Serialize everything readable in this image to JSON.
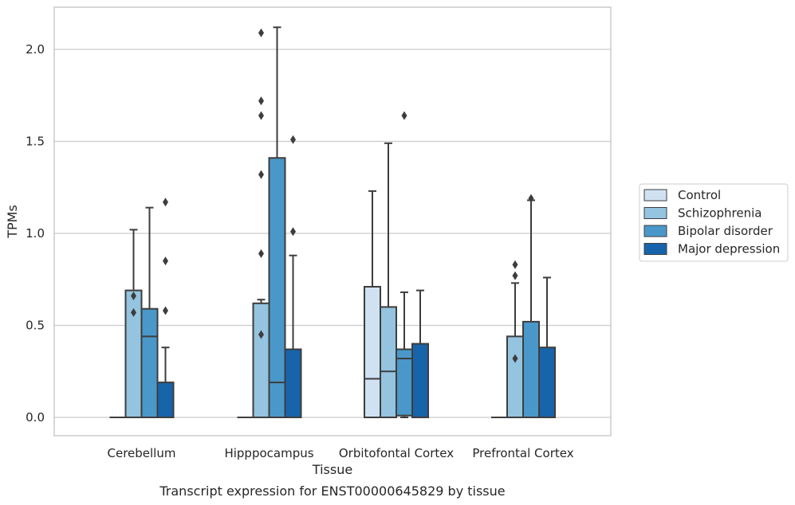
{
  "chart_data": {
    "type": "box",
    "title": "",
    "caption": "Transcript expression for ENST00000645829 by tissue",
    "xlabel": "Tissue",
    "ylabel": "TPMs",
    "categories": [
      "Cerebellum",
      "Hipppocampus",
      "Orbitofontal Cortex",
      "Prefrontal Cortex"
    ],
    "ylim": [
      -0.1,
      2.23
    ],
    "yticks": [
      0.0,
      0.5,
      1.0,
      1.5,
      2.0
    ],
    "ytick_labels": [
      "0.0",
      "0.5",
      "1.0",
      "1.5",
      "2.0"
    ],
    "grid": true,
    "legend_position": "right",
    "series": [
      {
        "name": "Control",
        "color": "#d0e1f2",
        "boxes": [
          {
            "q1": 0.0,
            "median": 0.0,
            "q3": 0.0,
            "whisker_low": 0.0,
            "whisker_high": 0.0,
            "outliers": []
          },
          {
            "q1": 0.0,
            "median": 0.0,
            "q3": 0.0,
            "whisker_low": 0.0,
            "whisker_high": 0.0,
            "outliers": []
          },
          {
            "q1": 0.0,
            "median": 0.21,
            "q3": 0.71,
            "whisker_low": 0.0,
            "whisker_high": 1.23,
            "outliers": []
          },
          {
            "q1": 0.0,
            "median": 0.0,
            "q3": 0.0,
            "whisker_low": 0.0,
            "whisker_high": 0.0,
            "outliers": []
          }
        ]
      },
      {
        "name": "Schizophrenia",
        "color": "#94c4df",
        "boxes": [
          {
            "q1": 0.0,
            "median": 0.0,
            "q3": 0.69,
            "whisker_low": 0.0,
            "whisker_high": 1.02,
            "outliers": [
              0.57,
              0.66
            ]
          },
          {
            "q1": 0.0,
            "median": 0.0,
            "q3": 0.62,
            "whisker_low": 0.0,
            "whisker_high": 0.64,
            "outliers": [
              0.45,
              0.89,
              1.32,
              1.64,
              1.72,
              2.09
            ]
          },
          {
            "q1": 0.0,
            "median": 0.25,
            "q3": 0.6,
            "whisker_low": 0.0,
            "whisker_high": 1.49,
            "outliers": []
          },
          {
            "q1": 0.0,
            "median": 0.0,
            "q3": 0.44,
            "whisker_low": 0.0,
            "whisker_high": 0.73,
            "outliers": [
              0.32,
              0.77,
              0.83
            ]
          }
        ]
      },
      {
        "name": "Bipolar disorder",
        "color": "#4a98c9",
        "boxes": [
          {
            "q1": 0.0,
            "median": 0.44,
            "q3": 0.59,
            "whisker_low": 0.0,
            "whisker_high": 1.14,
            "outliers": []
          },
          {
            "q1": 0.0,
            "median": 0.19,
            "q3": 1.41,
            "whisker_low": 0.0,
            "whisker_high": 2.12,
            "outliers": []
          },
          {
            "q1": 0.01,
            "median": 0.32,
            "q3": 0.37,
            "whisker_low": 0.0,
            "whisker_high": 0.68,
            "outliers": [
              1.64
            ]
          },
          {
            "q1": 0.0,
            "median": 0.0,
            "q3": 0.52,
            "whisker_low": 0.0,
            "whisker_high": 1.18,
            "outliers": [
              1.19
            ]
          }
        ]
      },
      {
        "name": "Major depression",
        "color": "#1764ab",
        "boxes": [
          {
            "q1": 0.0,
            "median": 0.0,
            "q3": 0.19,
            "whisker_low": 0.0,
            "whisker_high": 0.38,
            "outliers": [
              0.58,
              0.85,
              1.17
            ]
          },
          {
            "q1": 0.0,
            "median": 0.0,
            "q3": 0.37,
            "whisker_low": 0.0,
            "whisker_high": 0.88,
            "outliers": [
              1.01,
              1.51
            ]
          },
          {
            "q1": 0.0,
            "median": 0.0,
            "q3": 0.4,
            "whisker_low": 0.0,
            "whisker_high": 0.69,
            "outliers": []
          },
          {
            "q1": 0.0,
            "median": 0.0,
            "q3": 0.38,
            "whisker_low": 0.0,
            "whisker_high": 0.76,
            "outliers": []
          }
        ]
      }
    ]
  }
}
